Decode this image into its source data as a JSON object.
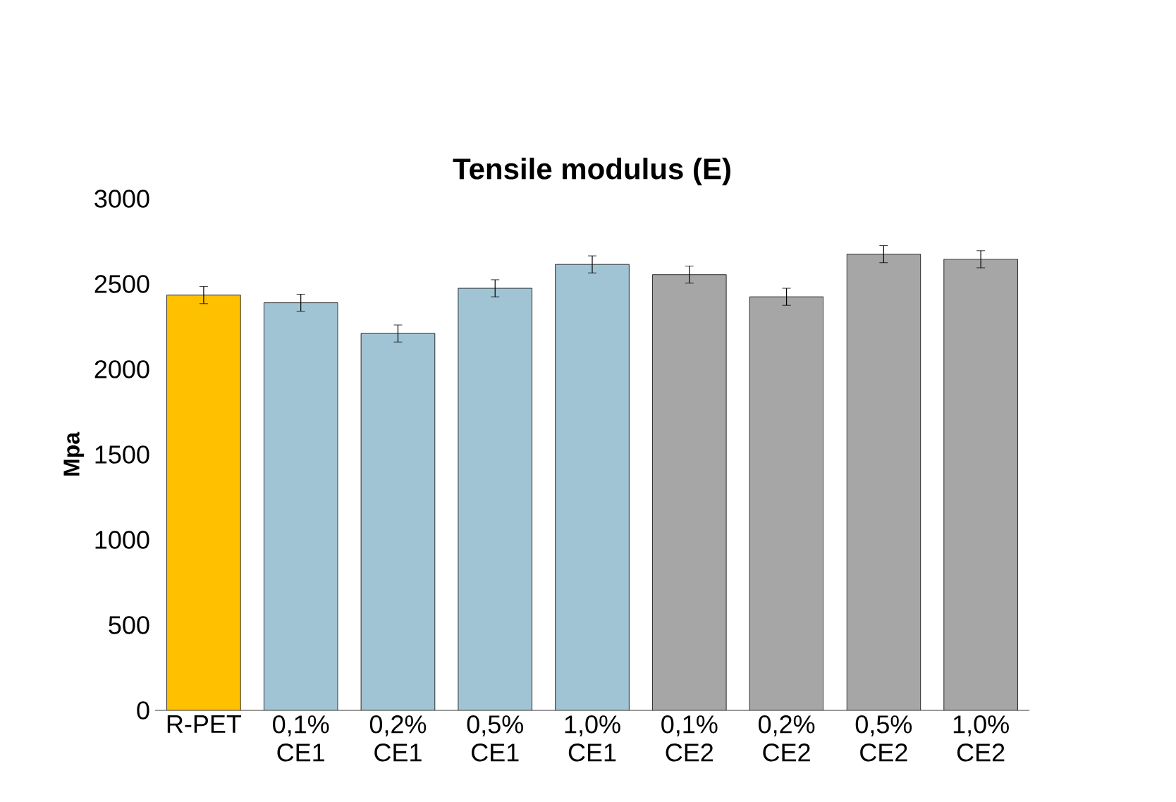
{
  "chart_data": {
    "type": "bar",
    "title": "Tensile modulus (E)",
    "ylabel": "Mpa",
    "categories": [
      "R-PET",
      "0,1% CE1",
      "0,2% CE1",
      "0,5% CE1",
      "1,0% CE1",
      "0,1% CE2",
      "0,2% CE2",
      "0,5% CE2",
      "1,0% CE2"
    ],
    "values": [
      2435,
      2390,
      2210,
      2475,
      2615,
      2555,
      2425,
      2675,
      2645
    ],
    "errors": [
      50,
      50,
      50,
      50,
      50,
      50,
      50,
      50,
      50
    ],
    "colors": [
      "#ffc000",
      "#a0c4d3",
      "#a0c4d3",
      "#a0c4d3",
      "#a0c4d3",
      "#a6a6a6",
      "#a6a6a6",
      "#a6a6a6",
      "#a6a6a6"
    ],
    "ylim": [
      0,
      3000
    ],
    "yticks": [
      0,
      500,
      1000,
      1500,
      2000,
      2500,
      3000
    ]
  }
}
